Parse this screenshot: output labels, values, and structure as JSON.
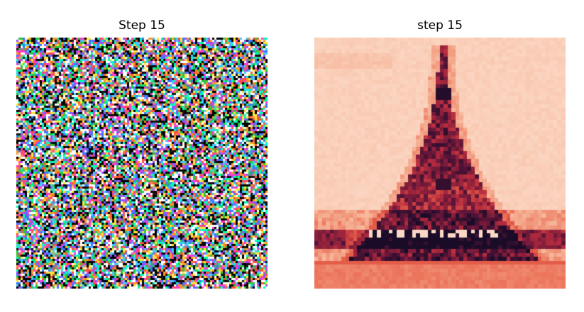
{
  "panels": [
    {
      "title": "Step 15",
      "content": "random-rgb-noise"
    },
    {
      "title": "step 15",
      "content": "heatmap",
      "colormap": [
        "#fde4d4",
        "#f6b497",
        "#e8624a",
        "#b52b3e",
        "#5a1438",
        "#1a0c28"
      ]
    }
  ]
}
